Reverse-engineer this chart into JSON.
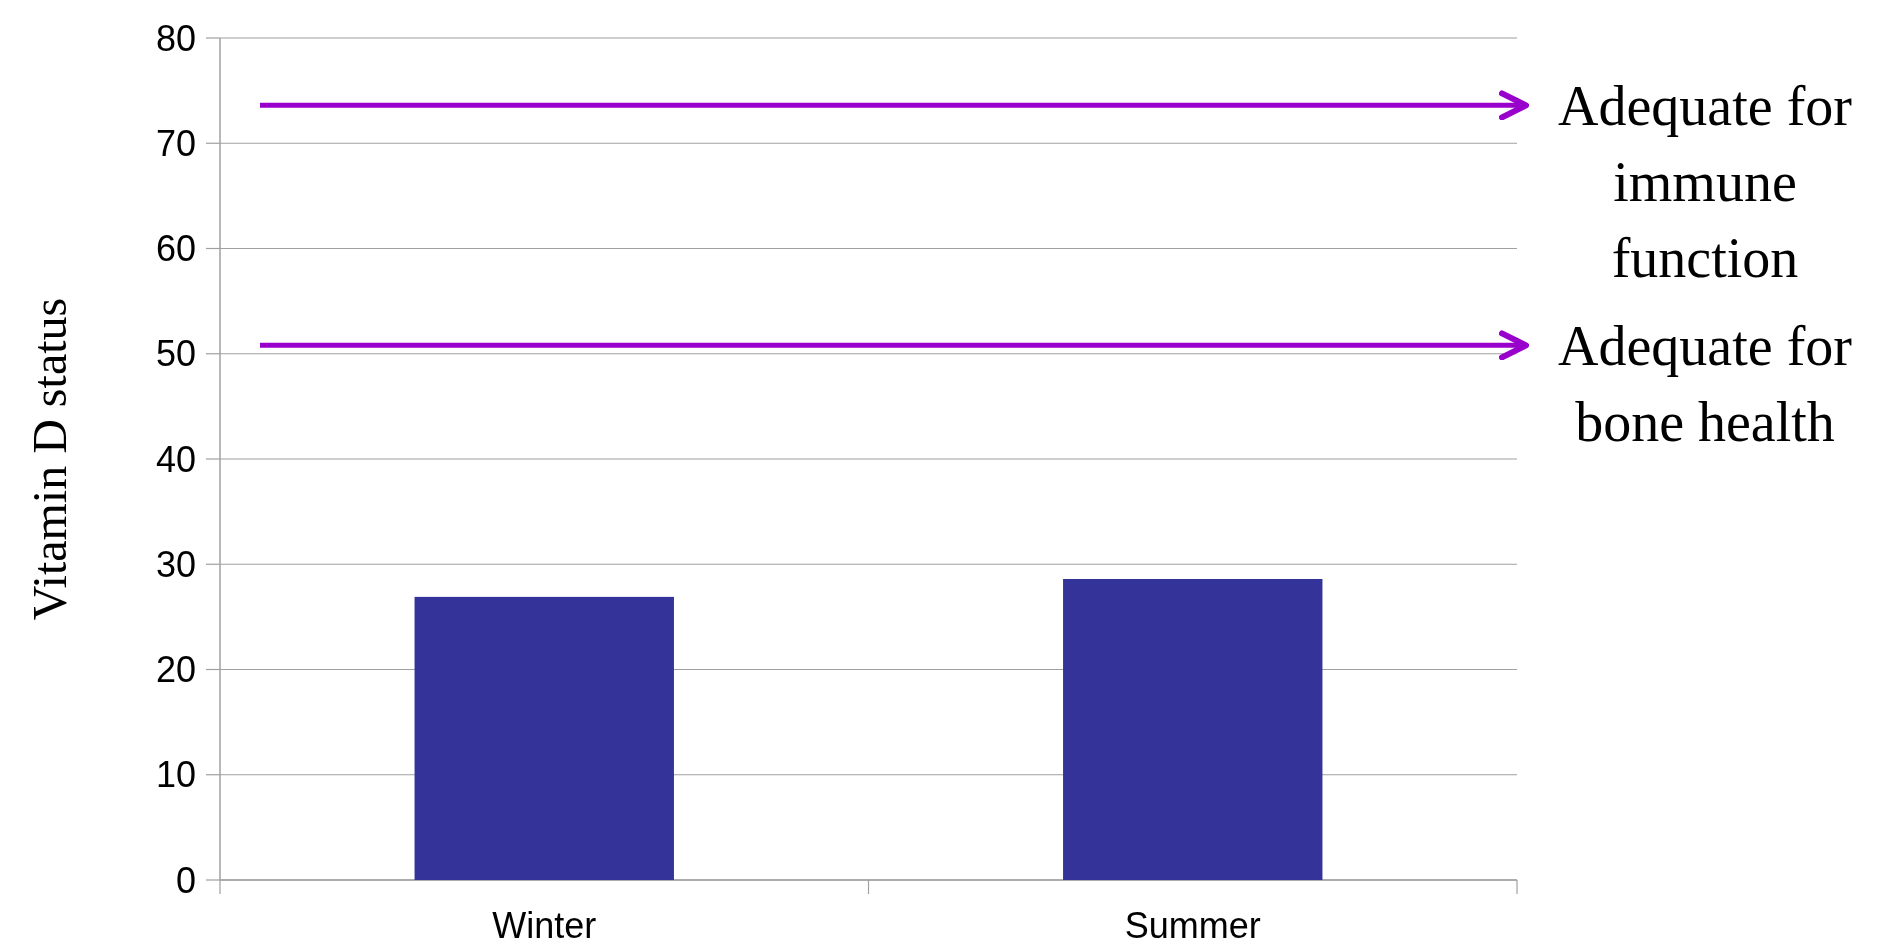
{
  "chart_data": {
    "type": "bar",
    "ylabel": "Vitamin D status",
    "categories": [
      "Winter",
      "Summer"
    ],
    "values": [
      26.9,
      28.6
    ],
    "color": "#333399",
    "ylim": [
      0,
      80
    ],
    "yticks": [
      0,
      10,
      20,
      30,
      40,
      50,
      60,
      70,
      80
    ],
    "grid": "y",
    "ref_lines": [
      {
        "axis": "y",
        "value": 73.6,
        "label": "Adequate for immune function",
        "color": "#9900cc"
      },
      {
        "axis": "y",
        "value": 50.8,
        "label": "Adequate for bone health",
        "color": "#9900cc"
      }
    ]
  }
}
